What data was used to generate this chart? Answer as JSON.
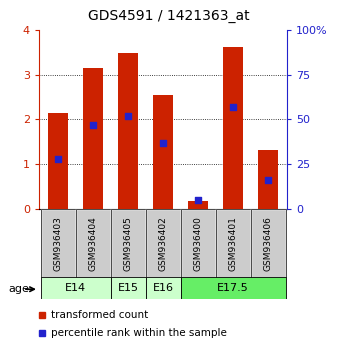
{
  "title": "GDS4591 / 1421363_at",
  "samples": [
    "GSM936403",
    "GSM936404",
    "GSM936405",
    "GSM936402",
    "GSM936400",
    "GSM936401",
    "GSM936406"
  ],
  "transformed_counts": [
    2.15,
    3.15,
    3.48,
    2.55,
    0.18,
    3.62,
    1.32
  ],
  "percentile_ranks": [
    28,
    47,
    52,
    37,
    5,
    57,
    16
  ],
  "age_groups": [
    {
      "label": "E14",
      "samples": [
        0,
        1
      ],
      "color": "#ccffcc"
    },
    {
      "label": "E15",
      "samples": [
        2
      ],
      "color": "#ccffcc"
    },
    {
      "label": "E16",
      "samples": [
        3
      ],
      "color": "#ccffcc"
    },
    {
      "label": "E17.5",
      "samples": [
        4,
        5,
        6
      ],
      "color": "#66ee66"
    }
  ],
  "ylim_left": [
    0,
    4
  ],
  "ylim_right": [
    0,
    100
  ],
  "bar_color": "#cc2200",
  "dot_color": "#2222cc",
  "title_fontsize": 10,
  "legend_fontsize": 7.5,
  "age_label": "age",
  "sample_box_color": "#cccccc",
  "left_tick_color": "#cc2200",
  "right_tick_color": "#2222cc",
  "yticks_left": [
    0,
    1,
    2,
    3,
    4
  ],
  "yticks_right": [
    0,
    25,
    50,
    75,
    100
  ],
  "bar_width": 0.55
}
